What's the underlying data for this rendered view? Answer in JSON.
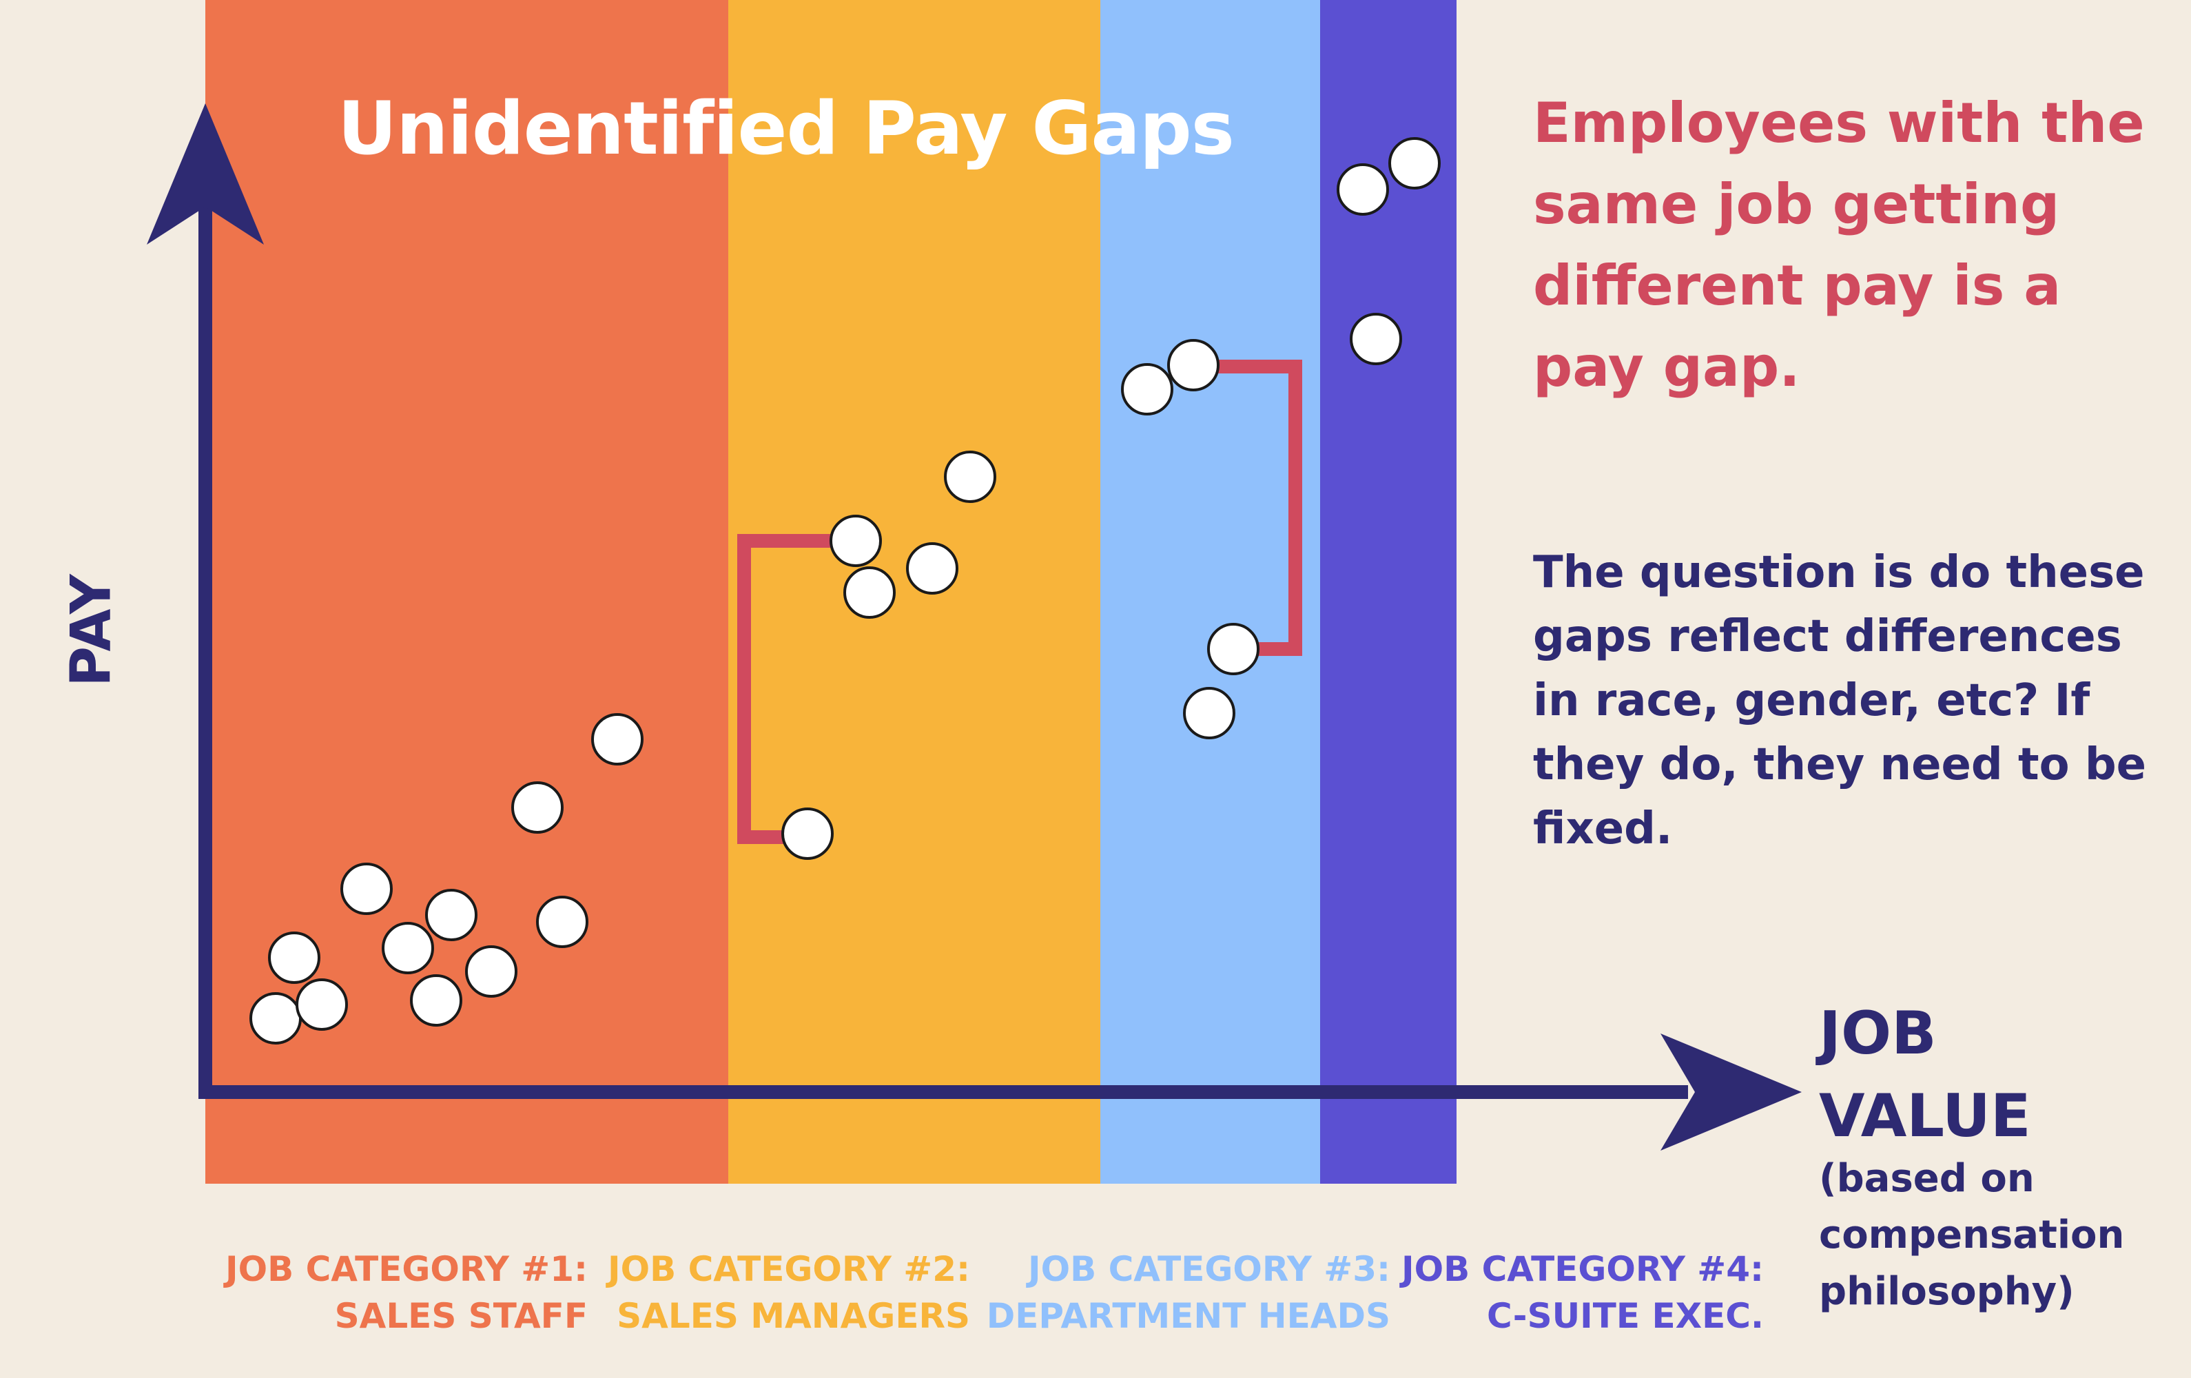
{
  "title": "Unidentified Pay Gaps",
  "callout_red": "Employees with the same job getting different pay is a pay gap.",
  "callout_blue": "The question is do these gaps reflect differences in race, gender, etc? If they do, they need to be fixed.",
  "axes": {
    "y_label": "PAY",
    "x_title": "JOB VALUE",
    "x_subtitle": "(based on compensation philosophy)"
  },
  "colors": {
    "background": "#F3ECE1",
    "axis": "#2E2A72",
    "gap_bracket": "#D04A5E",
    "point_fill": "#FFFFFF",
    "point_stroke": "#1A1A1A"
  },
  "categories": [
    {
      "line1": "JOB CATEGORY #1:",
      "line2": "SALES STAFF",
      "color": "#EE744C",
      "label_color": "#EE744C"
    },
    {
      "line1": "JOB CATEGORY #2:",
      "line2": "SALES MANAGERS",
      "color": "#F8B43A",
      "label_color": "#F8B43A"
    },
    {
      "line1": "JOB CATEGORY #3:",
      "line2": "DEPARTMENT HEADS",
      "color": "#90C0FC",
      "label_color": "#90C0FC"
    },
    {
      "line1": "JOB CATEGORY #4:",
      "line2": "C-SUITE EXEC.",
      "color": "#5B50D2",
      "label_color": "#5B50D2"
    }
  ]
}
